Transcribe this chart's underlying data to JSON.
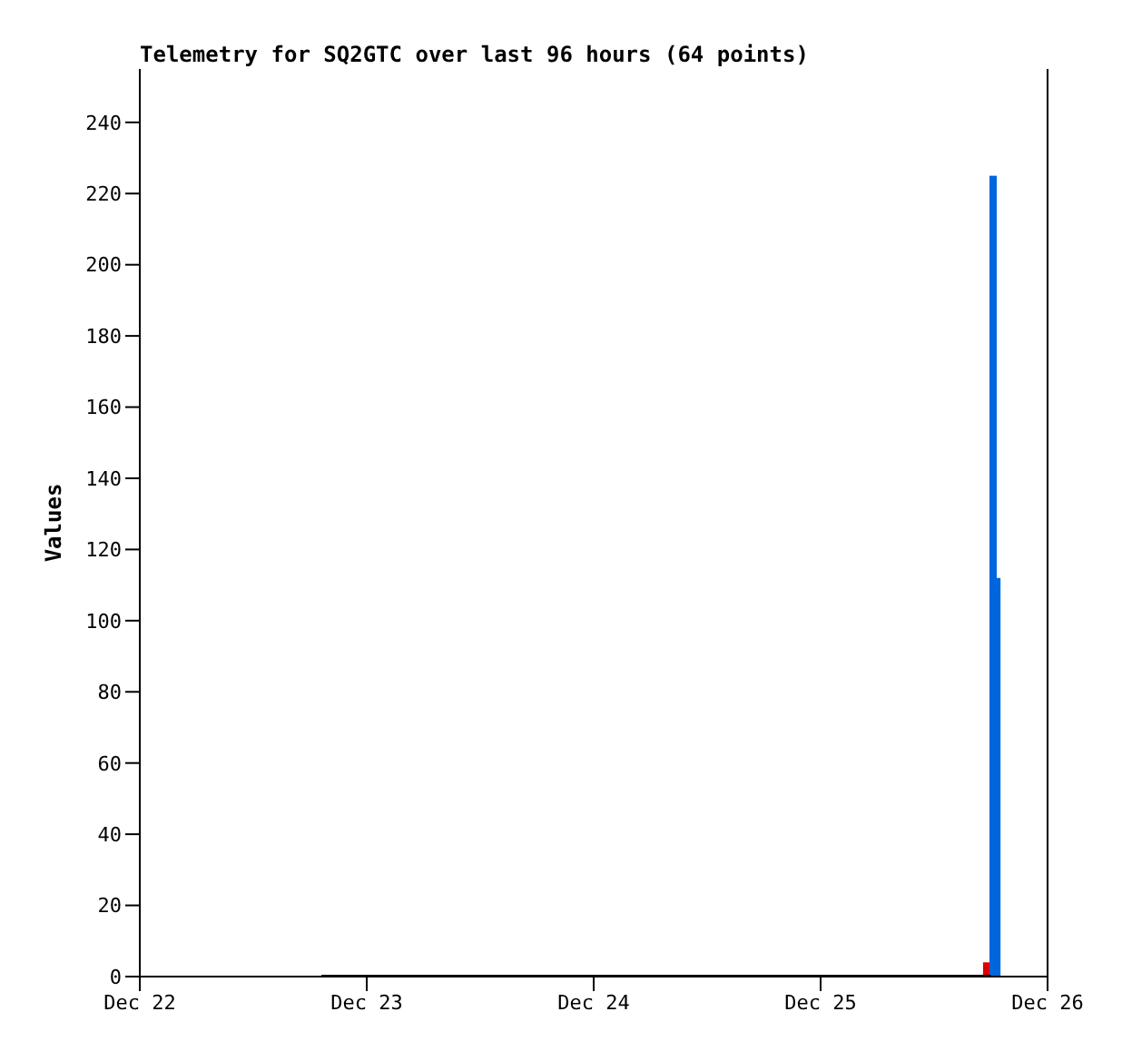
{
  "chart_data": {
    "type": "bar",
    "title": "Telemetry for SQ2GTC over last 96 hours (64 points)",
    "ylabel": "Values",
    "xlim": [
      "--12-22",
      "--12-26"
    ],
    "xticks": [
      {
        "value": "--12-22",
        "label": "Dec 22"
      },
      {
        "value": "--12-23",
        "label": "Dec 23"
      },
      {
        "value": "--12-24",
        "label": "Dec 24"
      },
      {
        "value": "--12-25",
        "label": "Dec 25"
      },
      {
        "value": "--12-26",
        "label": "Dec 26"
      }
    ],
    "ylim": [
      0,
      255
    ],
    "yticks": [
      0,
      20,
      40,
      60,
      80,
      100,
      120,
      140,
      160,
      180,
      200,
      220,
      240
    ],
    "series": [
      {
        "type": "line",
        "color": "#000000",
        "x": [
          "--12-22T19:12",
          "--12-25T18:00"
        ],
        "values": [
          0,
          0
        ]
      },
      {
        "color": "#dd0000",
        "x": [
          "--12-25T17:36"
        ],
        "values": [
          4
        ]
      },
      {
        "color": "#0066dd",
        "x": [
          "--12-25T18:12",
          "--12-25T18:36"
        ],
        "values": [
          225,
          112
        ]
      }
    ]
  }
}
